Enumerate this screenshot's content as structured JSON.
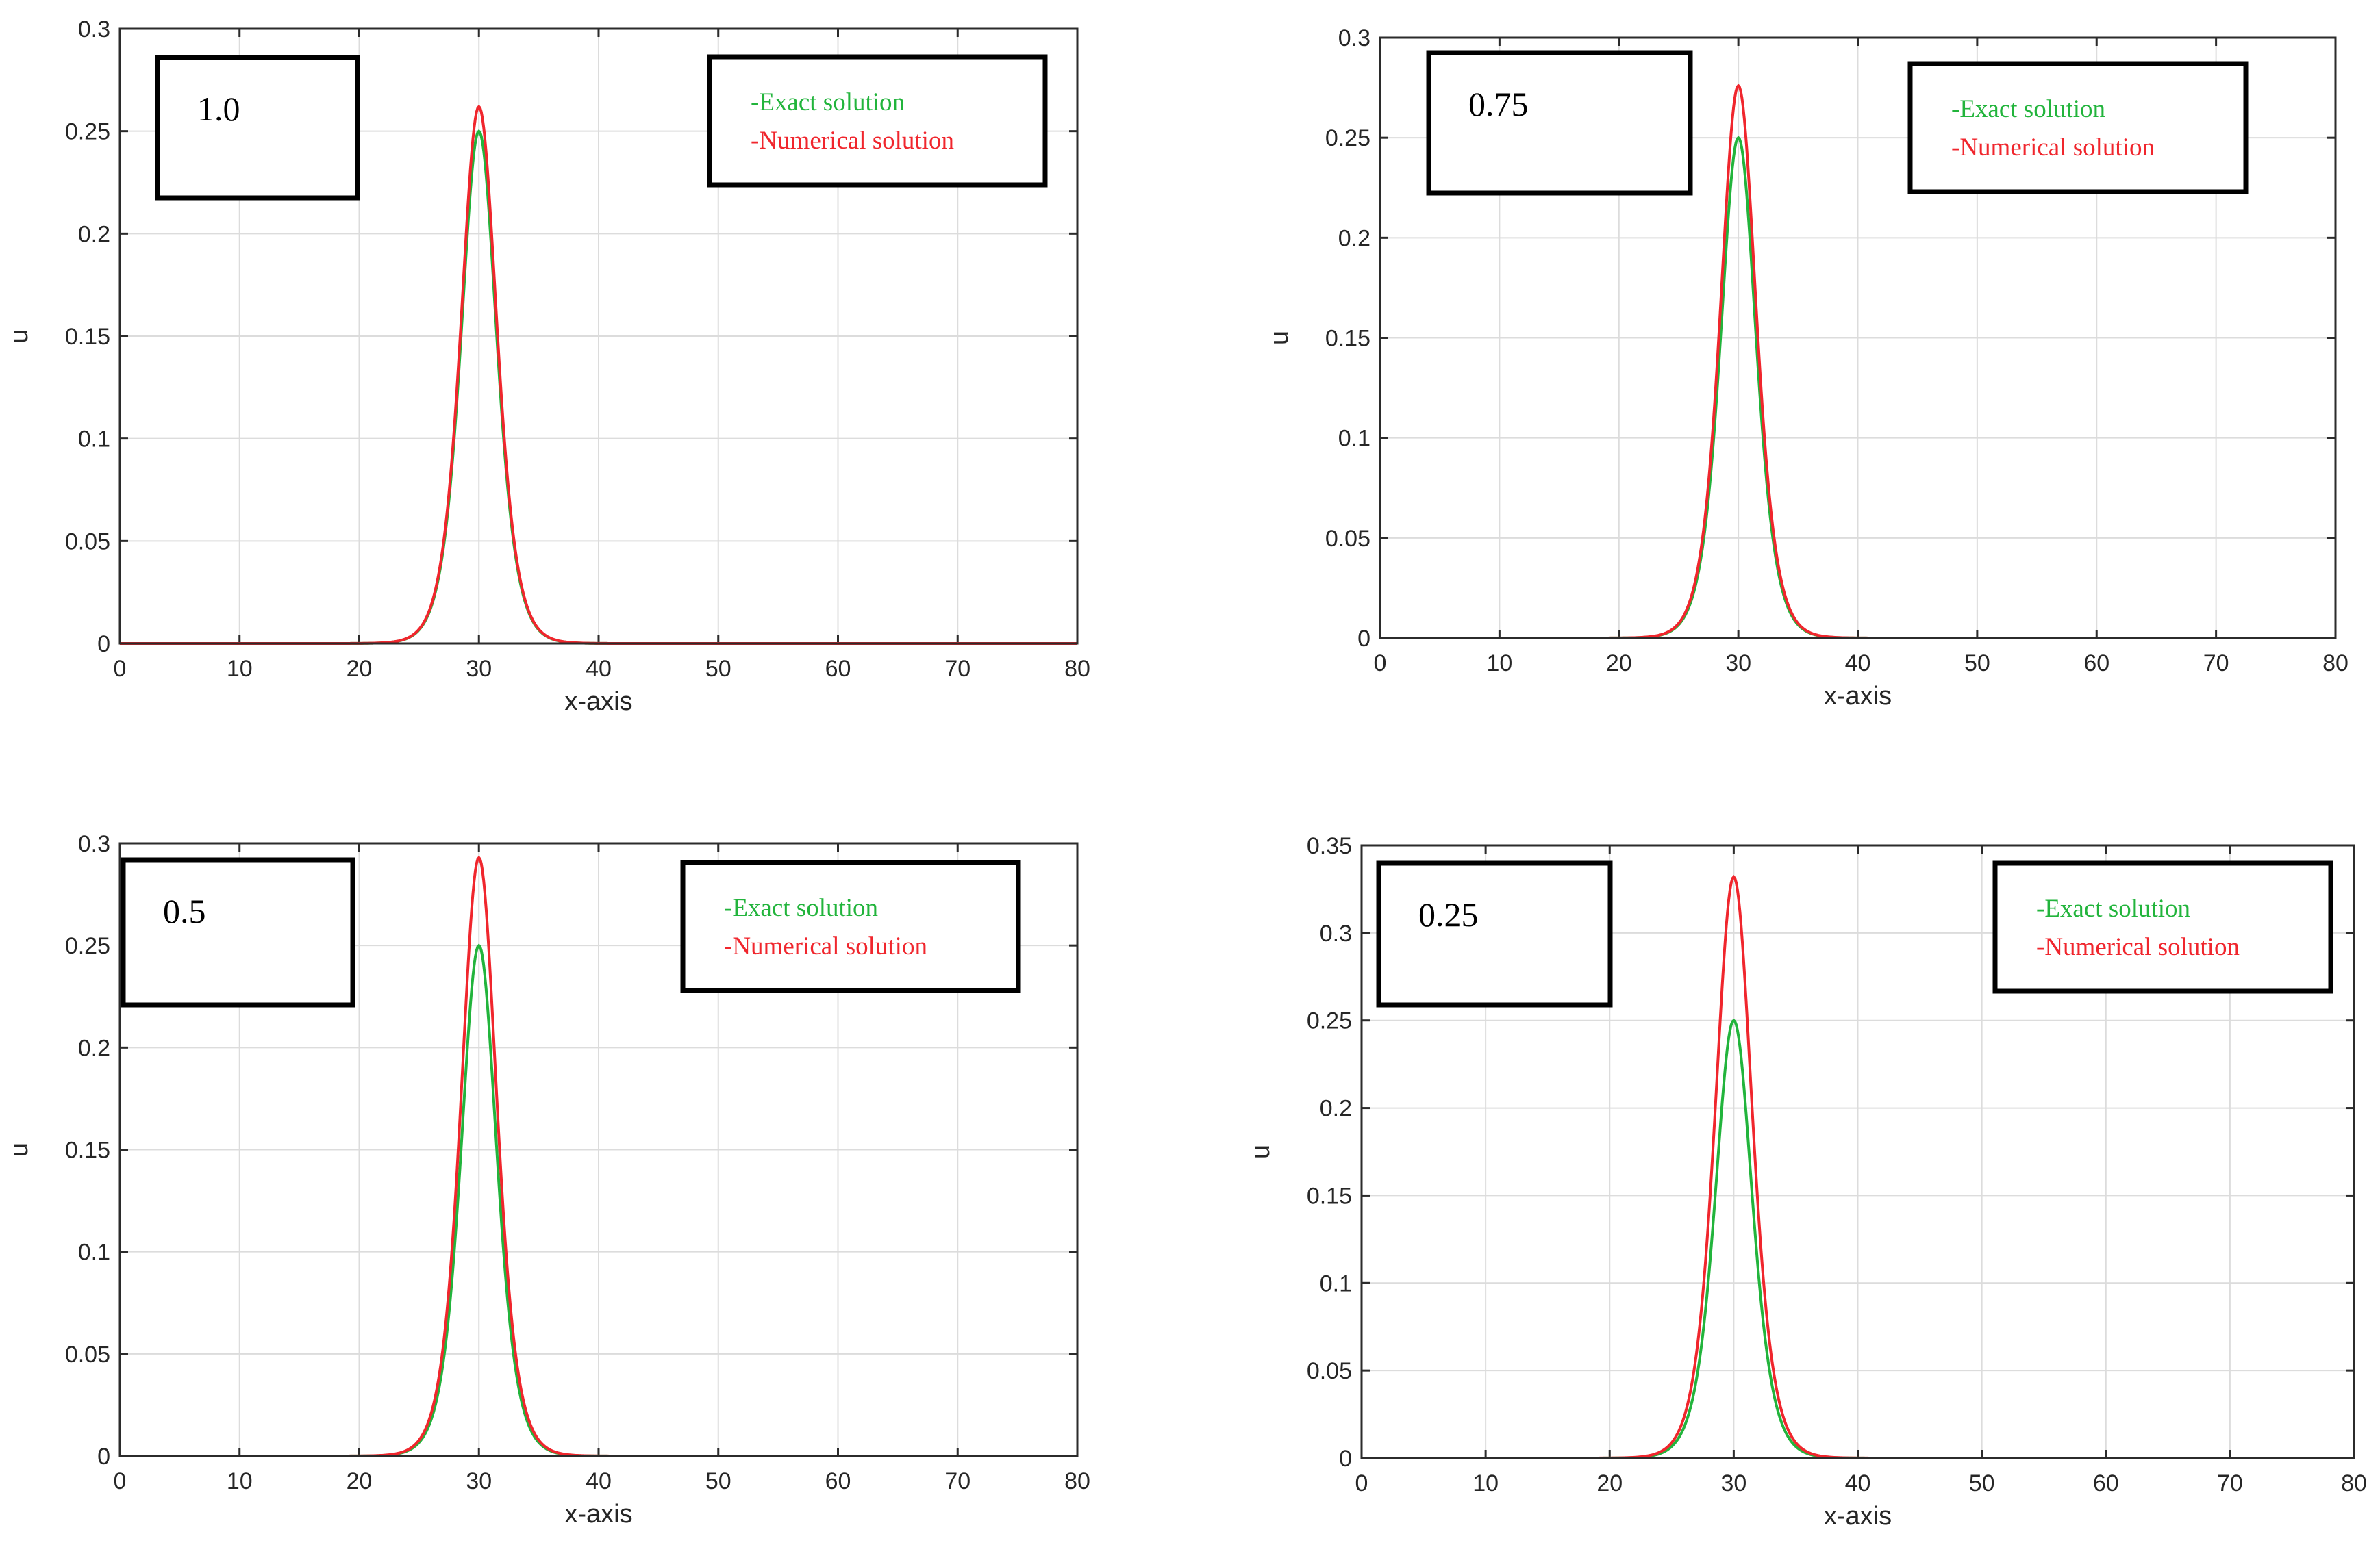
{
  "chart_data": [
    {
      "type": "line",
      "annotation": "1.0",
      "xlabel": "x-axis",
      "ylabel": "u",
      "xlim": [
        0,
        80
      ],
      "ylim": [
        0,
        0.3
      ],
      "xticks": [
        0,
        10,
        20,
        30,
        40,
        50,
        60,
        70,
        80
      ],
      "yticks": [
        0,
        0.05,
        0.1,
        0.15,
        0.2,
        0.25,
        0.3
      ],
      "xtick_labels": [
        "0",
        "10",
        "20",
        "30",
        "40",
        "50",
        "60",
        "70",
        "80"
      ],
      "ytick_labels": [
        "0",
        "0.05",
        "0.1",
        "0.15",
        "0.2",
        "0.25",
        "0.3"
      ],
      "grid": true,
      "legend_position": "top-right",
      "series": [
        {
          "name": "-Exact solution",
          "color": "#22b43c",
          "center": 30,
          "peak": 0.25
        },
        {
          "name": "-Numerical solution",
          "color": "#f0262d",
          "center": 30,
          "peak": 0.262
        }
      ]
    },
    {
      "type": "line",
      "annotation": "0.75",
      "xlabel": "x-axis",
      "ylabel": "u",
      "xlim": [
        0,
        80
      ],
      "ylim": [
        0,
        0.3
      ],
      "xticks": [
        0,
        10,
        20,
        30,
        40,
        50,
        60,
        70,
        80
      ],
      "yticks": [
        0,
        0.05,
        0.1,
        0.15,
        0.2,
        0.25,
        0.3
      ],
      "xtick_labels": [
        "0",
        "10",
        "20",
        "30",
        "40",
        "50",
        "60",
        "70",
        "80"
      ],
      "ytick_labels": [
        "0",
        "0.05",
        "0.1",
        "0.15",
        "0.2",
        "0.25",
        "0.3"
      ],
      "grid": true,
      "legend_position": "top-right",
      "series": [
        {
          "name": "-Exact solution",
          "color": "#22b43c",
          "center": 30,
          "peak": 0.25
        },
        {
          "name": "-Numerical solution",
          "color": "#f0262d",
          "center": 30,
          "peak": 0.276
        }
      ]
    },
    {
      "type": "line",
      "annotation": "0.5",
      "xlabel": "x-axis",
      "ylabel": "u",
      "xlim": [
        0,
        80
      ],
      "ylim": [
        0,
        0.3
      ],
      "xticks": [
        0,
        10,
        20,
        30,
        40,
        50,
        60,
        70,
        80
      ],
      "yticks": [
        0,
        0.05,
        0.1,
        0.15,
        0.2,
        0.25,
        0.3
      ],
      "xtick_labels": [
        "0",
        "10",
        "20",
        "30",
        "40",
        "50",
        "60",
        "70",
        "80"
      ],
      "ytick_labels": [
        "0",
        "0.05",
        "0.1",
        "0.15",
        "0.2",
        "0.25",
        "0.3"
      ],
      "grid": true,
      "legend_position": "top-right",
      "series": [
        {
          "name": "-Exact solution",
          "color": "#22b43c",
          "center": 30,
          "peak": 0.25
        },
        {
          "name": "-Numerical solution",
          "color": "#f0262d",
          "center": 30,
          "peak": 0.293
        }
      ]
    },
    {
      "type": "line",
      "annotation": "0.25",
      "xlabel": "x-axis",
      "ylabel": "u",
      "xlim": [
        0,
        80
      ],
      "ylim": [
        0,
        0.35
      ],
      "xticks": [
        0,
        10,
        20,
        30,
        40,
        50,
        60,
        70,
        80
      ],
      "yticks": [
        0,
        0.05,
        0.1,
        0.15,
        0.2,
        0.25,
        0.3,
        0.35
      ],
      "xtick_labels": [
        "0",
        "10",
        "20",
        "30",
        "40",
        "50",
        "60",
        "70",
        "80"
      ],
      "ytick_labels": [
        "0",
        "0.05",
        "0.1",
        "0.15",
        "0.2",
        "0.25",
        "0.3",
        "0.35"
      ],
      "grid": true,
      "legend_position": "top-right",
      "series": [
        {
          "name": "-Exact solution",
          "color": "#22b43c",
          "center": 30,
          "peak": 0.25
        },
        {
          "name": "-Numerical solution",
          "color": "#f0262d",
          "center": 30,
          "peak": 0.332
        }
      ]
    }
  ]
}
